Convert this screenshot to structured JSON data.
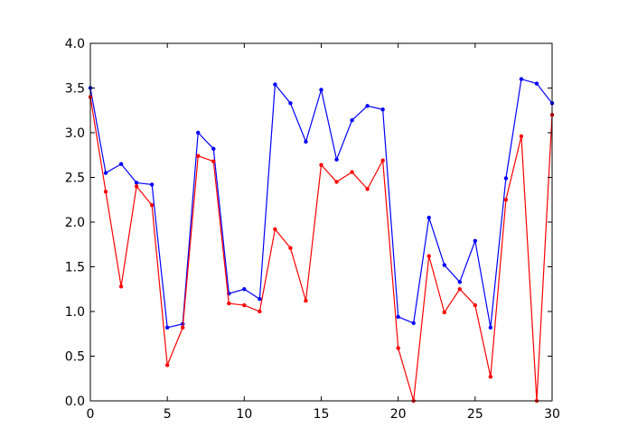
{
  "chart_data": {
    "type": "line",
    "title": "",
    "xlabel": "",
    "ylabel": "",
    "xlim": [
      0,
      30
    ],
    "ylim": [
      0,
      4
    ],
    "grid": false,
    "x_ticks": [
      0,
      5,
      10,
      15,
      20,
      25,
      30
    ],
    "y_ticks": [
      0,
      0.5,
      1,
      1.5,
      2,
      2.5,
      3,
      3.5,
      4
    ],
    "x_tick_labels": [
      "0",
      "5",
      "10",
      "15",
      "20",
      "25",
      "30"
    ],
    "y_tick_labels": [
      "0.0",
      "0.5",
      "1.0",
      "1.5",
      "2.0",
      "2.5",
      "3.0",
      "3.5",
      "4.0"
    ],
    "x": [
      0,
      1,
      2,
      3,
      4,
      5,
      6,
      7,
      8,
      9,
      10,
      11,
      12,
      13,
      14,
      15,
      16,
      17,
      18,
      19,
      20,
      21,
      22,
      23,
      24,
      25,
      26,
      27,
      28,
      29,
      30
    ],
    "series": [
      {
        "color": "#0000ff",
        "values": [
          3.5,
          2.55,
          2.65,
          2.44,
          2.42,
          0.82,
          0.86,
          3.0,
          2.82,
          1.2,
          1.25,
          1.14,
          3.54,
          3.33,
          2.9,
          3.48,
          2.7,
          3.14,
          3.3,
          3.26,
          0.94,
          0.87,
          2.05,
          1.52,
          1.33,
          1.79,
          0.82,
          2.49,
          3.6,
          3.55,
          3.33
        ]
      },
      {
        "color": "#ff0000",
        "values": [
          3.4,
          2.34,
          1.28,
          2.4,
          2.19,
          0.4,
          0.82,
          2.74,
          2.68,
          1.09,
          1.07,
          1.0,
          1.92,
          1.71,
          1.12,
          2.64,
          2.45,
          2.56,
          2.37,
          2.69,
          0.59,
          0.0,
          1.62,
          0.99,
          1.25,
          1.07,
          0.27,
          2.25,
          2.96,
          0.0,
          3.2
        ]
      }
    ]
  }
}
